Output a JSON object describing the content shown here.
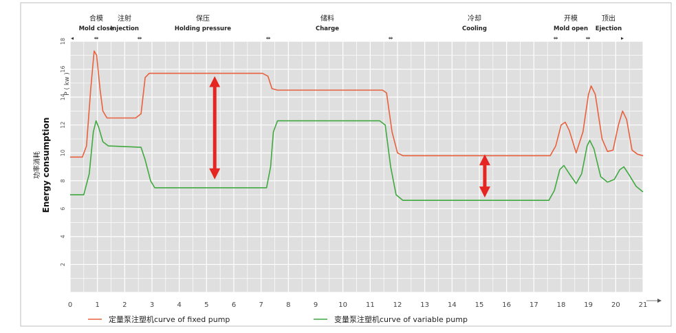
{
  "chart_data": {
    "type": "line",
    "ylabel_cn": "功率消耗",
    "ylabel_en": "Energy consumption",
    "y_unit": "P ( kw )",
    "xlim": [
      0,
      21
    ],
    "ylim": [
      0,
      18
    ],
    "x_ticks": [
      "0",
      "1",
      "2",
      "3",
      "4",
      "5",
      "6",
      "7",
      "8",
      "9",
      "10",
      "11",
      "12",
      "13",
      "14",
      "15",
      "16",
      "17",
      "18",
      "19",
      "20",
      "21"
    ],
    "y_ticks": [
      "2",
      "4",
      "6",
      "8",
      "10",
      "12",
      "14",
      "16",
      "18"
    ],
    "phases": [
      {
        "cn": "合模",
        "en": "Mold close"
      },
      {
        "cn": "注射",
        "en": "Injection"
      },
      {
        "cn": "保压",
        "en": "Holding pressure"
      },
      {
        "cn": "储料",
        "en": "Charge"
      },
      {
        "cn": "冷却",
        "en": "Cooling"
      },
      {
        "cn": "开模",
        "en": "Mold open"
      },
      {
        "cn": "顶出",
        "en": "Ejection"
      }
    ],
    "series": [
      {
        "name": "定量泵注塑机curve of fixed pump",
        "color": "#e8603c",
        "points": [
          [
            0,
            9.7
          ],
          [
            0.45,
            9.7
          ],
          [
            0.6,
            10.5
          ],
          [
            0.75,
            14.5
          ],
          [
            0.88,
            17.3
          ],
          [
            0.97,
            17.0
          ],
          [
            1.1,
            14.5
          ],
          [
            1.2,
            13.0
          ],
          [
            1.35,
            12.5
          ],
          [
            2.4,
            12.5
          ],
          [
            2.6,
            12.8
          ],
          [
            2.75,
            15.4
          ],
          [
            2.9,
            15.7
          ],
          [
            7.05,
            15.7
          ],
          [
            7.25,
            15.5
          ],
          [
            7.4,
            14.6
          ],
          [
            7.6,
            14.5
          ],
          [
            11.45,
            14.5
          ],
          [
            11.6,
            14.3
          ],
          [
            11.8,
            11.5
          ],
          [
            12.0,
            10.0
          ],
          [
            12.2,
            9.8
          ],
          [
            17.6,
            9.8
          ],
          [
            17.8,
            10.5
          ],
          [
            18.0,
            12.0
          ],
          [
            18.15,
            12.2
          ],
          [
            18.3,
            11.6
          ],
          [
            18.55,
            10.0
          ],
          [
            18.8,
            11.5
          ],
          [
            19.0,
            14.2
          ],
          [
            19.1,
            14.8
          ],
          [
            19.25,
            14.2
          ],
          [
            19.5,
            11.0
          ],
          [
            19.7,
            10.1
          ],
          [
            19.9,
            10.2
          ],
          [
            20.1,
            12.0
          ],
          [
            20.25,
            13.0
          ],
          [
            20.4,
            12.4
          ],
          [
            20.6,
            10.2
          ],
          [
            20.8,
            9.9
          ],
          [
            21.0,
            9.8
          ]
        ]
      },
      {
        "name": "变量泵注塑机curve of variable pump",
        "color": "#3fa83f",
        "points": [
          [
            0,
            7.0
          ],
          [
            0.5,
            7.0
          ],
          [
            0.7,
            8.5
          ],
          [
            0.85,
            11.5
          ],
          [
            0.95,
            12.3
          ],
          [
            1.05,
            11.8
          ],
          [
            1.2,
            10.8
          ],
          [
            1.4,
            10.5
          ],
          [
            2.6,
            10.4
          ],
          [
            2.75,
            9.5
          ],
          [
            2.95,
            8.0
          ],
          [
            3.1,
            7.5
          ],
          [
            7.2,
            7.5
          ],
          [
            7.35,
            9.0
          ],
          [
            7.45,
            11.5
          ],
          [
            7.6,
            12.3
          ],
          [
            11.35,
            12.3
          ],
          [
            11.55,
            12.0
          ],
          [
            11.75,
            9.0
          ],
          [
            11.95,
            7.0
          ],
          [
            12.2,
            6.6
          ],
          [
            17.55,
            6.6
          ],
          [
            17.75,
            7.3
          ],
          [
            17.95,
            8.8
          ],
          [
            18.1,
            9.1
          ],
          [
            18.3,
            8.5
          ],
          [
            18.55,
            7.8
          ],
          [
            18.75,
            8.5
          ],
          [
            18.95,
            10.5
          ],
          [
            19.05,
            10.9
          ],
          [
            19.2,
            10.3
          ],
          [
            19.45,
            8.3
          ],
          [
            19.7,
            7.9
          ],
          [
            19.95,
            8.1
          ],
          [
            20.15,
            8.8
          ],
          [
            20.3,
            9.0
          ],
          [
            20.5,
            8.4
          ],
          [
            20.75,
            7.6
          ],
          [
            21.0,
            7.2
          ]
        ]
      }
    ],
    "annotations": [
      {
        "type": "double-arrow",
        "x": 5.3,
        "y_from": 15.4,
        "y_to": 8.2,
        "color": "#e52521"
      },
      {
        "type": "double-arrow",
        "x": 15.2,
        "y_from": 9.8,
        "y_to": 6.9,
        "color": "#e52521"
      }
    ],
    "grid": true,
    "legend_position": "bottom"
  }
}
